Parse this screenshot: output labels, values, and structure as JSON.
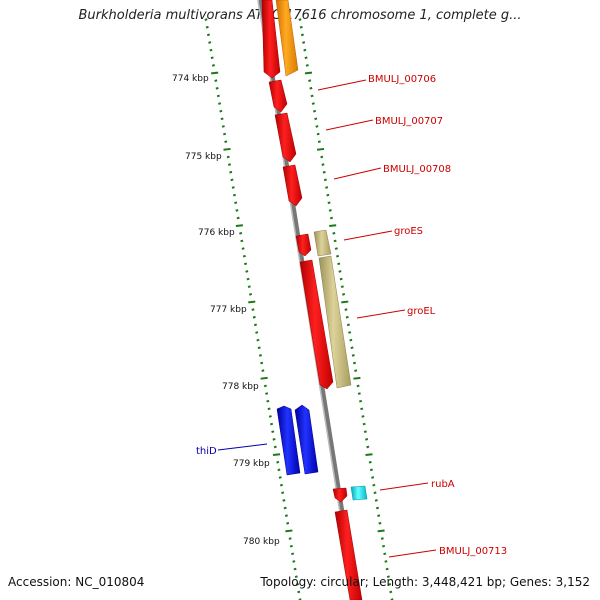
{
  "title": "Burkholderia multivorans ATCC 17616 chromosome 1, complete g...",
  "footer": {
    "accession": "Accession: NC_010804",
    "topology": "Topology: circular; Length: 3,448,421 bp; Genes: 3,152"
  },
  "scale_labels": [
    "774 kbp",
    "775 kbp",
    "776 kbp",
    "777 kbp",
    "778 kbp",
    "779 kbp",
    "780 kbp"
  ],
  "genes": [
    {
      "name": "BMULJ_00706",
      "strand": "+",
      "color": "#ff0000"
    },
    {
      "name": "BMULJ_00707",
      "strand": "+",
      "color": "#ff0000"
    },
    {
      "name": "BMULJ_00708",
      "strand": "+",
      "color": "#ff0000"
    },
    {
      "name": "groES",
      "strand": "+",
      "color": "#ff0000"
    },
    {
      "name": "groEL",
      "strand": "+",
      "color": "#ff0000"
    },
    {
      "name": "thiD",
      "strand": "-",
      "color": "#0000ee"
    },
    {
      "name": "rubA",
      "strand": "+",
      "color": "#ff0000"
    },
    {
      "name": "BMULJ_00713",
      "strand": "+",
      "color": "#ff0000"
    }
  ],
  "colors": {
    "forward_gene": "#ff0000",
    "reverse_gene": "#0000ee",
    "label_forward": "#cc0000",
    "label_reverse": "#0000aa",
    "backbone": "#888888",
    "tick": "#1a7a1a",
    "orange_feature": "#ff9900",
    "khaki_feature": "#c8bd7a",
    "cyan_feature": "#00e5ee"
  }
}
